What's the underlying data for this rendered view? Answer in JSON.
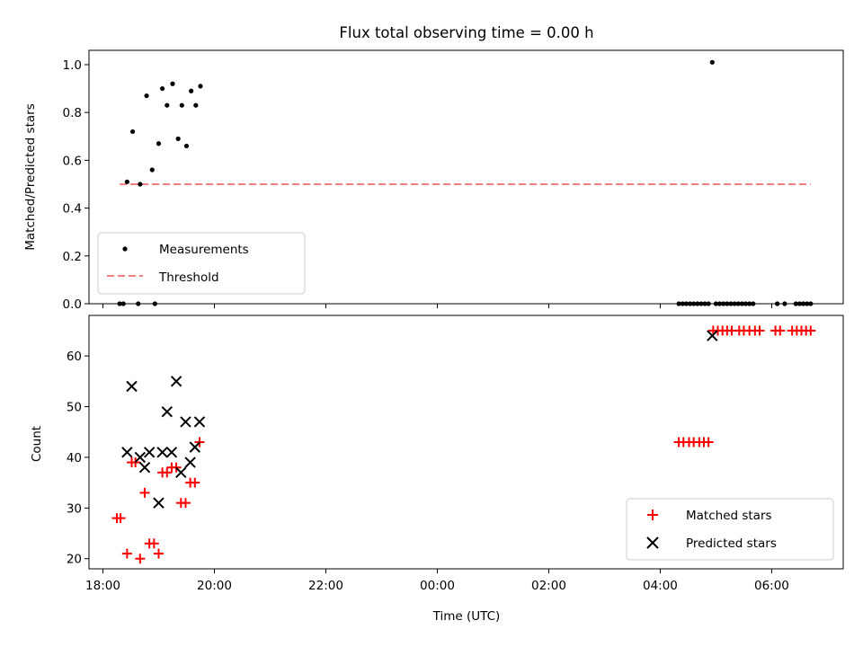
{
  "chart_data": [
    {
      "type": "scatter",
      "title": "Flux total observing time = 0.00 h",
      "xlabel": "",
      "ylabel": "Matched/Predicted stars",
      "xlim": [
        "17:45",
        "07:17"
      ],
      "ylim": [
        0,
        1.06
      ],
      "yticks": [
        0.0,
        0.2,
        0.4,
        0.6,
        0.8,
        1.0
      ],
      "ytick_labels": [
        "0.0",
        "0.2",
        "0.4",
        "0.6",
        "0.8",
        "1.0"
      ],
      "grid": false,
      "legend": "lower-left",
      "series": [
        {
          "name": "Measurements",
          "marker": "dot",
          "color": "#000000",
          "points": [
            [
              "18:18",
              0.0
            ],
            [
              "18:22",
              0.0
            ],
            [
              "18:26",
              0.51
            ],
            [
              "18:32",
              0.72
            ],
            [
              "18:38",
              0.0
            ],
            [
              "18:40",
              0.5
            ],
            [
              "18:47",
              0.87
            ],
            [
              "18:53",
              0.56
            ],
            [
              "18:56",
              0.0
            ],
            [
              "19:00",
              0.67
            ],
            [
              "19:04",
              0.9
            ],
            [
              "19:09",
              0.83
            ],
            [
              "19:15",
              0.92
            ],
            [
              "19:21",
              0.69
            ],
            [
              "19:25",
              0.83
            ],
            [
              "19:30",
              0.66
            ],
            [
              "19:35",
              0.89
            ],
            [
              "19:40",
              0.83
            ],
            [
              "19:45",
              0.91
            ],
            [
              "04:20",
              0.0
            ],
            [
              "04:24",
              0.0
            ],
            [
              "04:28",
              0.0
            ],
            [
              "04:32",
              0.0
            ],
            [
              "04:36",
              0.0
            ],
            [
              "04:40",
              0.0
            ],
            [
              "04:44",
              0.0
            ],
            [
              "04:48",
              0.0
            ],
            [
              "04:52",
              0.0
            ],
            [
              "04:56",
              1.01
            ],
            [
              "05:00",
              0.0
            ],
            [
              "05:04",
              0.0
            ],
            [
              "05:08",
              0.0
            ],
            [
              "05:12",
              0.0
            ],
            [
              "05:16",
              0.0
            ],
            [
              "05:20",
              0.0
            ],
            [
              "05:24",
              0.0
            ],
            [
              "05:28",
              0.0
            ],
            [
              "05:32",
              0.0
            ],
            [
              "05:36",
              0.0
            ],
            [
              "05:40",
              0.0
            ],
            [
              "06:06",
              0.0
            ],
            [
              "06:14",
              0.0
            ],
            [
              "06:26",
              0.0
            ],
            [
              "06:30",
              0.0
            ],
            [
              "06:34",
              0.0
            ],
            [
              "06:38",
              0.0
            ],
            [
              "06:42",
              0.0
            ]
          ]
        },
        {
          "name": "Threshold",
          "line_style": "dashed",
          "color": "#f08080",
          "points": [
            [
              "18:18",
              0.5
            ],
            [
              "06:42",
              0.5
            ]
          ]
        }
      ]
    },
    {
      "type": "scatter",
      "title": "",
      "xlabel": "Time (UTC)",
      "ylabel": "Count",
      "xlim": [
        "17:45",
        "07:17"
      ],
      "ylim": [
        18,
        68
      ],
      "xticks": [
        "18:00",
        "20:00",
        "22:00",
        "00:00",
        "02:00",
        "04:00",
        "06:00"
      ],
      "yticks": [
        20,
        30,
        40,
        50,
        60
      ],
      "ytick_labels": [
        "20",
        "30",
        "40",
        "50",
        "60"
      ],
      "grid": false,
      "legend": "lower-right",
      "series": [
        {
          "name": "Matched stars",
          "marker": "plus",
          "color": "#ff0000",
          "points": [
            [
              "18:15",
              28
            ],
            [
              "18:19",
              28
            ],
            [
              "18:26",
              21
            ],
            [
              "18:31",
              39
            ],
            [
              "18:35",
              39
            ],
            [
              "18:40",
              20
            ],
            [
              "18:45",
              33
            ],
            [
              "18:50",
              23
            ],
            [
              "18:55",
              23
            ],
            [
              "19:00",
              21
            ],
            [
              "19:04",
              37
            ],
            [
              "19:09",
              37
            ],
            [
              "19:14",
              38
            ],
            [
              "19:19",
              38
            ],
            [
              "19:24",
              31
            ],
            [
              "19:29",
              31
            ],
            [
              "19:34",
              35
            ],
            [
              "19:39",
              35
            ],
            [
              "19:44",
              43
            ],
            [
              "04:20",
              43
            ],
            [
              "04:25",
              43
            ],
            [
              "04:31",
              43
            ],
            [
              "04:36",
              43
            ],
            [
              "04:42",
              43
            ],
            [
              "04:47",
              43
            ],
            [
              "04:52",
              43
            ],
            [
              "04:57",
              65
            ],
            [
              "05:02",
              65
            ],
            [
              "05:07",
              65
            ],
            [
              "05:12",
              65
            ],
            [
              "05:17",
              65
            ],
            [
              "05:25",
              65
            ],
            [
              "05:30",
              65
            ],
            [
              "05:36",
              65
            ],
            [
              "05:42",
              65
            ],
            [
              "05:47",
              65
            ],
            [
              "06:04",
              65
            ],
            [
              "06:09",
              65
            ],
            [
              "06:22",
              65
            ],
            [
              "06:27",
              65
            ],
            [
              "06:32",
              65
            ],
            [
              "06:37",
              65
            ],
            [
              "06:42",
              65
            ]
          ]
        },
        {
          "name": "Predicted stars",
          "marker": "x",
          "color": "#000000",
          "points": [
            [
              "18:26",
              41
            ],
            [
              "18:31",
              54
            ],
            [
              "18:40",
              40
            ],
            [
              "18:45",
              38
            ],
            [
              "18:50",
              41
            ],
            [
              "19:00",
              31
            ],
            [
              "19:04",
              41
            ],
            [
              "19:09",
              49
            ],
            [
              "19:14",
              41
            ],
            [
              "19:19",
              55
            ],
            [
              "19:24",
              37
            ],
            [
              "19:29",
              47
            ],
            [
              "19:34",
              39
            ],
            [
              "19:39",
              42
            ],
            [
              "19:44",
              47
            ],
            [
              "04:56",
              64
            ]
          ]
        }
      ]
    }
  ]
}
